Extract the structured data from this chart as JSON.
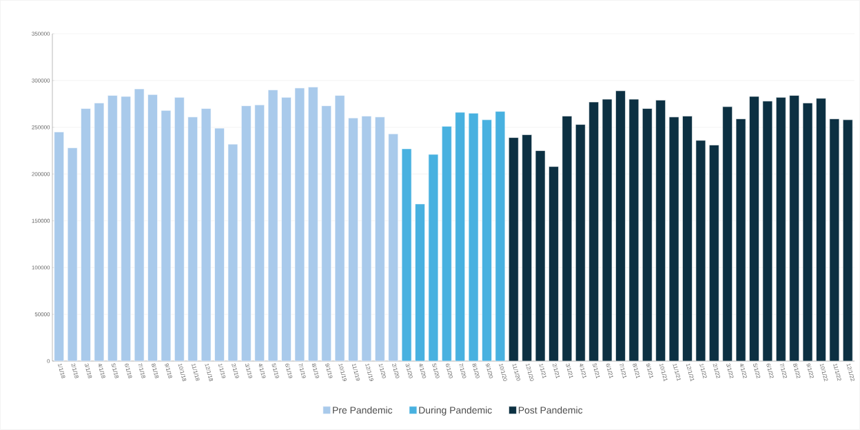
{
  "chart_data": {
    "type": "bar",
    "categories": [
      "1/1/18",
      "2/1/18",
      "3/1/18",
      "4/1/18",
      "5/1/18",
      "6/1/18",
      "7/1/18",
      "8/1/18",
      "9/1/18",
      "10/1/18",
      "11/1/18",
      "12/1/18",
      "1/1/19",
      "2/1/19",
      "3/1/19",
      "4/1/19",
      "5/1/19",
      "6/1/19",
      "7/1/19",
      "8/1/19",
      "9/1/19",
      "10/1/19",
      "11/1/19",
      "12/1/19",
      "1/1/20",
      "2/1/20",
      "3/1/20",
      "4/1/20",
      "5/1/20",
      "6/1/20",
      "7/1/20",
      "8/1/20",
      "9/1/20",
      "10/1/20",
      "11/1/20",
      "12/1/20",
      "1/1/21",
      "2/1/21",
      "3/1/21",
      "4/1/21",
      "5/1/21",
      "6/1/21",
      "7/1/21",
      "8/1/21",
      "9/1/21",
      "10/1/21",
      "11/1/21",
      "12/1/21",
      "1/1/22",
      "2/1/22",
      "3/1/22",
      "4/1/22",
      "5/1/22",
      "6/1/22",
      "7/1/22",
      "8/1/22",
      "9/1/22",
      "10/1/22",
      "11/1/22",
      "12/1/22"
    ],
    "series": [
      {
        "name": "Pre Pandemic",
        "color": "#a9caeb",
        "values": [
          245000,
          228000,
          270000,
          276000,
          284000,
          283000,
          291000,
          285000,
          268000,
          282000,
          261000,
          270000,
          249000,
          232000,
          273000,
          274000,
          290000,
          282000,
          292000,
          293000,
          273000,
          284000,
          260000,
          262000,
          261000,
          243000,
          null,
          null,
          null,
          null,
          null,
          null,
          null,
          null,
          null,
          null,
          null,
          null,
          null,
          null,
          null,
          null,
          null,
          null,
          null,
          null,
          null,
          null,
          null,
          null,
          null,
          null,
          null,
          null,
          null,
          null,
          null,
          null,
          null,
          null
        ]
      },
      {
        "name": "During Pandemic",
        "color": "#48b1e0",
        "values": [
          null,
          null,
          null,
          null,
          null,
          null,
          null,
          null,
          null,
          null,
          null,
          null,
          null,
          null,
          null,
          null,
          null,
          null,
          null,
          null,
          null,
          null,
          null,
          null,
          null,
          null,
          227000,
          168000,
          221000,
          251000,
          266000,
          265000,
          258000,
          267000,
          null,
          null,
          null,
          null,
          null,
          null,
          null,
          null,
          null,
          null,
          null,
          null,
          null,
          null,
          null,
          null,
          null,
          null,
          null,
          null,
          null,
          null,
          null,
          null,
          null,
          null
        ]
      },
      {
        "name": "Post Pandemic",
        "color": "#0c3042",
        "values": [
          null,
          null,
          null,
          null,
          null,
          null,
          null,
          null,
          null,
          null,
          null,
          null,
          null,
          null,
          null,
          null,
          null,
          null,
          null,
          null,
          null,
          null,
          null,
          null,
          null,
          null,
          null,
          null,
          null,
          null,
          null,
          null,
          null,
          null,
          239000,
          242000,
          225000,
          208000,
          262000,
          253000,
          277000,
          280000,
          289000,
          280000,
          270000,
          279000,
          261000,
          262000,
          236000,
          231000,
          272000,
          259000,
          283000,
          278000,
          282000,
          284000,
          276000,
          281000,
          259000,
          258000
        ]
      }
    ],
    "ylim": [
      0,
      350000
    ],
    "yticks": [
      0,
      50000,
      100000,
      150000,
      200000,
      250000,
      300000,
      350000
    ],
    "grid": "y",
    "legend": "bottom"
  }
}
